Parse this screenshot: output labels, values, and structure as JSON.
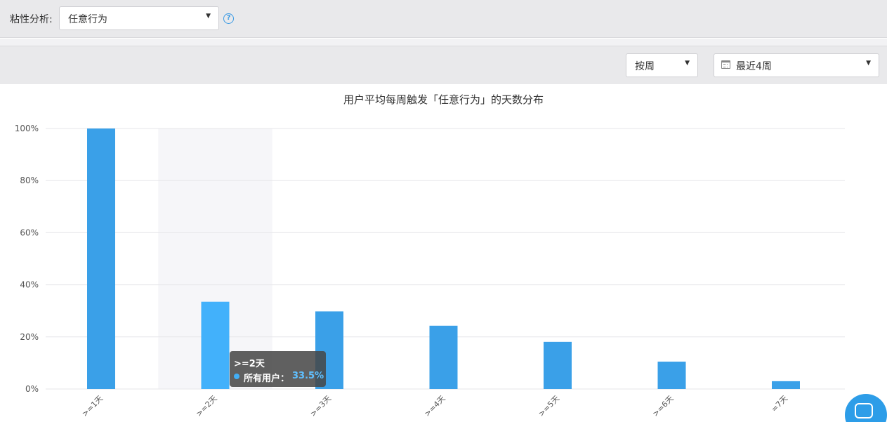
{
  "header": {
    "label": "粘性分析:",
    "event_select": "任意行为",
    "help_icon": "?"
  },
  "toolbar": {
    "period_select": "按周",
    "range_select": "最近4周"
  },
  "icons": {
    "dropdown": "chevron-down-icon",
    "calendar": "calendar-icon",
    "help": "help-icon",
    "chat": "chat-icon"
  },
  "colors": {
    "bar": "#3aa0e8",
    "bar_highlight": "#42b1fb",
    "hover_band": "#f6f6f9",
    "grid": "#e6e6e9",
    "tooltip_value": "#5fc0ff",
    "chat_button": "#2d9de8"
  },
  "chart_data": {
    "type": "bar",
    "title": "用户平均每周触发「任意行为」的天数分布",
    "categories": [
      ">=1天",
      ">=2天",
      ">=3天",
      ">=4天",
      ">=5天",
      ">=6天",
      "=7天"
    ],
    "series": [
      {
        "name": "所有用户",
        "values": [
          100,
          33.5,
          29.8,
          24.3,
          18.1,
          10.5,
          3.0
        ]
      }
    ],
    "yticks": [
      "100%",
      "80%",
      "60%",
      "40%",
      "20%",
      "0%"
    ],
    "ylim": [
      0,
      100
    ],
    "grid": true,
    "highlighted_category": ">=2天",
    "tooltip": {
      "title": ">=2天",
      "series_label": "所有用户：",
      "value": "33.5%"
    }
  }
}
